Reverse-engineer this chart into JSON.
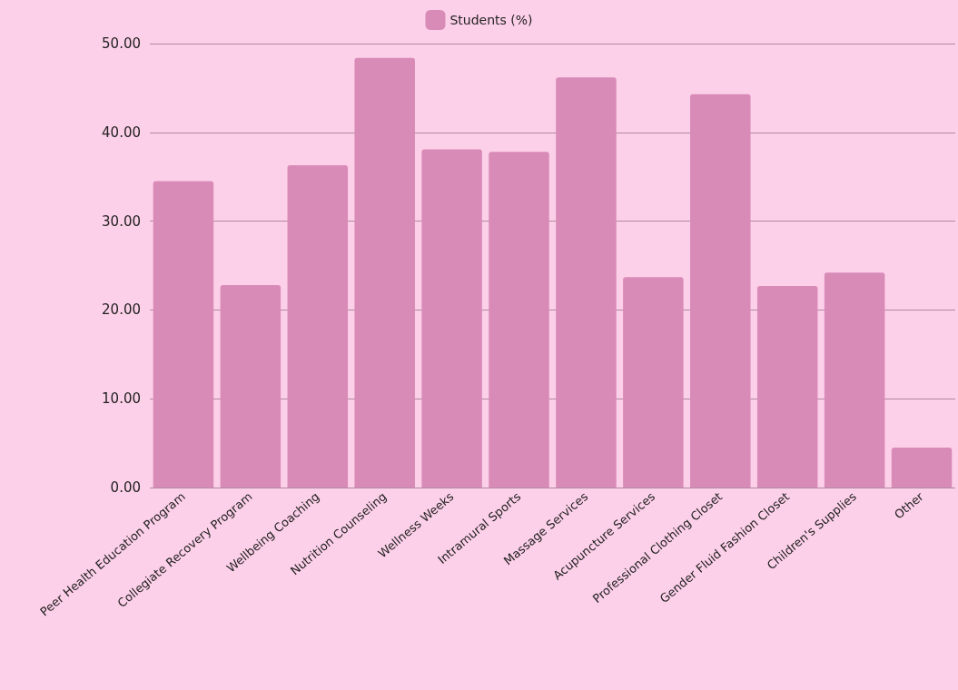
{
  "chart_data": {
    "type": "bar",
    "categories": [
      "Peer Health Education Program",
      "Collegiate Recovery Program",
      "Wellbeing Coaching",
      "Nutrition Counseling",
      "Wellness Weeks",
      "Intramural Sports",
      "Massage Services",
      "Acupuncture Services",
      "Professional Clothing Closet",
      "Gender Fluid Fashion Closet",
      "Children's Supplies",
      "Other"
    ],
    "series": [
      {
        "name": "Students (%)",
        "color": "#d98bb8",
        "values": [
          34.5,
          22.8,
          36.3,
          48.4,
          38.1,
          37.8,
          46.2,
          23.7,
          44.3,
          22.7,
          24.2,
          4.5
        ]
      }
    ],
    "ylim": [
      0,
      50
    ],
    "yticks": [
      {
        "value": 0,
        "label": "0.00"
      },
      {
        "value": 10,
        "label": "10.00"
      },
      {
        "value": 20,
        "label": "20.00"
      },
      {
        "value": 30,
        "label": "30.00"
      },
      {
        "value": 40,
        "label": "40.00"
      },
      {
        "value": 50,
        "label": "50.00"
      }
    ],
    "grid": "y",
    "legend": "top"
  }
}
